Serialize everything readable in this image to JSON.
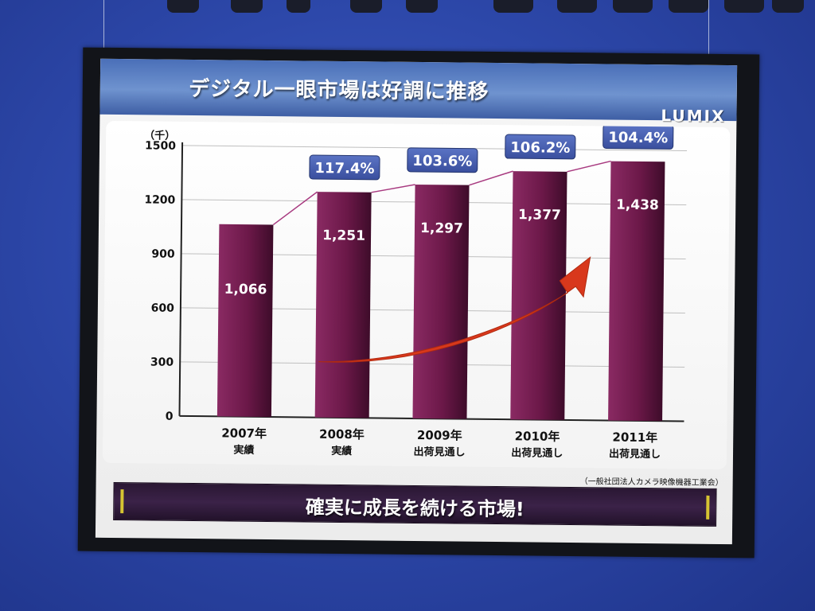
{
  "slide": {
    "title": "デジタル一眼市場は好調に推移",
    "brand": "LUMIX",
    "source_note": "（一般社団法人カメラ映像機器工業会）",
    "footer_message": "確実に成長を続ける市場!"
  },
  "colors": {
    "bar": "#6b1848",
    "bar_highlight": "#8a2a63",
    "badge": "#3a4f9e",
    "arrow": "#d8381c",
    "connector": "#a83a80",
    "background": "#2d48aa"
  },
  "chart_data": {
    "type": "bar",
    "unit_label": "（千）",
    "ylim": [
      0,
      1500
    ],
    "yticks": [
      "1500",
      "1200",
      "900",
      "600",
      "300",
      "0"
    ],
    "categories": [
      {
        "year": "2007年",
        "sub": "実績"
      },
      {
        "year": "2008年",
        "sub": "実績"
      },
      {
        "year": "2009年",
        "sub": "出荷見通し"
      },
      {
        "year": "2010年",
        "sub": "出荷見通し"
      },
      {
        "year": "2011年",
        "sub": "出荷見通し"
      }
    ],
    "values": [
      1066,
      1251,
      1297,
      1377,
      1438
    ],
    "value_labels": [
      "1,066",
      "1,251",
      "1,297",
      "1,377",
      "1,438"
    ],
    "growth_labels": [
      "",
      "117.4%",
      "103.6%",
      "106.2%",
      "104.4%"
    ],
    "grid": true,
    "annotation": "upward-trend-arrow"
  }
}
